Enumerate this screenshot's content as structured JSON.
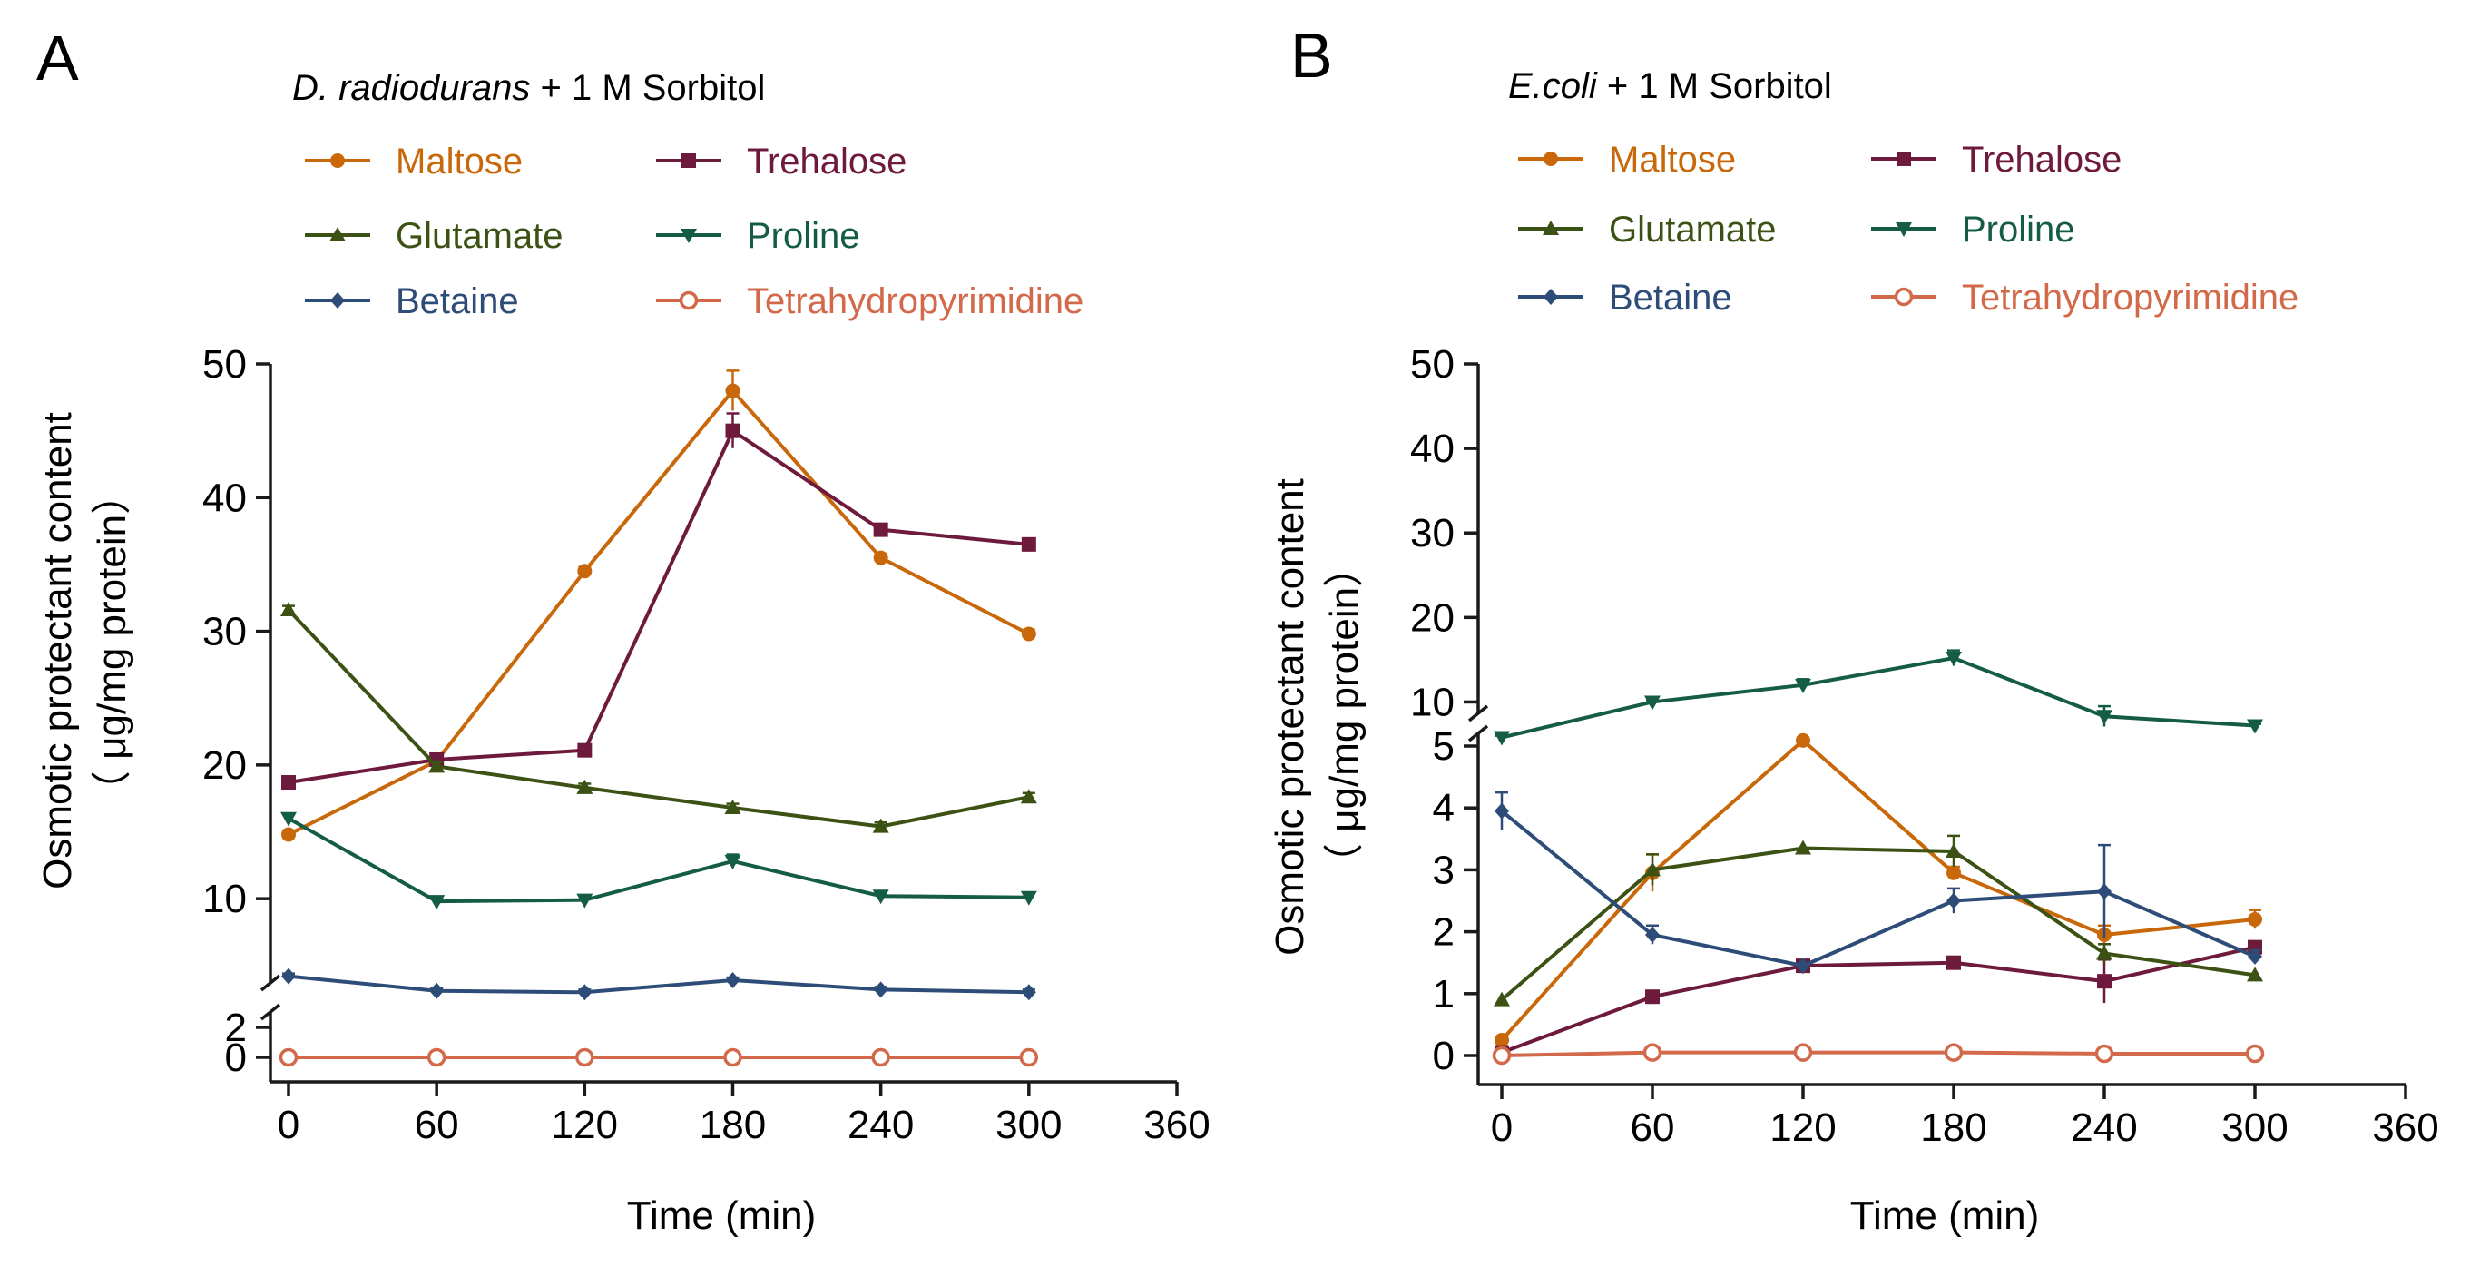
{
  "figure": {
    "panel_labels": [
      "A",
      "B"
    ]
  },
  "colors": {
    "Maltose": "#c8680a",
    "Trehalose": "#6e1a3c",
    "Glutamate": "#3c5214",
    "Proline": "#145c46",
    "Betaine": "#2e4c78",
    "Tetrahydropyrimidine": "#d2694a",
    "axis": "#1a1a1a"
  },
  "chart_data": [
    {
      "type": "line",
      "panel": "A",
      "title_italic": "D. radiodurans",
      "title_rest": " + 1 M Sorbitol",
      "xlabel": "Time (min)",
      "ylabel_line1": "Osmotic protectant content",
      "ylabel_line2": "（ μg/mg protein）",
      "x": [
        0,
        60,
        120,
        180,
        240,
        300
      ],
      "xlim": [
        0,
        360
      ],
      "xticks": [
        "0",
        "60",
        "120",
        "180",
        "240",
        "300",
        "360"
      ],
      "y_broken": true,
      "ylim_lower": [
        0,
        2
      ],
      "ylim_upper": [
        2,
        50
      ],
      "yticks_lower": [
        "0",
        "2"
      ],
      "yticks_upper": [
        "10",
        "20",
        "30",
        "40",
        "50"
      ],
      "legend_layout": "two-column, above plot",
      "series": [
        {
          "name": "Maltose",
          "marker": "circle",
          "values": [
            14.8,
            20.3,
            34.5,
            48.0,
            35.5,
            29.8
          ],
          "errors": [
            0.3,
            0.3,
            0.3,
            1.5,
            0.3,
            0.3
          ]
        },
        {
          "name": "Trehalose",
          "marker": "square",
          "values": [
            18.7,
            20.4,
            21.1,
            45.0,
            37.6,
            36.5
          ],
          "errors": [
            0.3,
            0.3,
            0.3,
            1.3,
            0.3,
            0.3
          ]
        },
        {
          "name": "Glutamate",
          "marker": "triangle-up",
          "values": [
            31.6,
            19.9,
            18.3,
            16.8,
            15.4,
            17.6
          ],
          "errors": [
            0.3,
            0.3,
            0.3,
            0.3,
            0.3,
            0.3
          ]
        },
        {
          "name": "Proline",
          "marker": "triangle-down",
          "values": [
            16.0,
            9.8,
            9.9,
            12.8,
            10.2,
            10.1
          ],
          "errors": [
            0.3,
            0.3,
            0.3,
            0.5,
            0.3,
            0.3
          ]
        },
        {
          "name": "Betaine",
          "marker": "diamond",
          "values": [
            4.2,
            3.1,
            3.0,
            3.9,
            3.2,
            3.0
          ],
          "errors": [
            0.2,
            0.2,
            0.2,
            0.2,
            0.2,
            0.2
          ]
        },
        {
          "name": "Tetrahydropyrimidine",
          "marker": "open-circle",
          "values": [
            0.0,
            0.0,
            0.0,
            0.0,
            0.0,
            0.0
          ],
          "errors": [
            0,
            0,
            0,
            0,
            0,
            0
          ]
        }
      ]
    },
    {
      "type": "line",
      "panel": "B",
      "title_italic": "E.coli",
      "title_rest": " + 1 M Sorbitol",
      "xlabel": "Time (min)",
      "ylabel_line1": "Osmotic protectant content",
      "ylabel_line2": "（ μg/mg protein）",
      "x": [
        0,
        60,
        120,
        180,
        240,
        300
      ],
      "xlim": [
        0,
        360
      ],
      "xticks": [
        "0",
        "60",
        "120",
        "180",
        "240",
        "300",
        "360"
      ],
      "y_broken": true,
      "ylim_lower": [
        0,
        5
      ],
      "ylim_upper": [
        5,
        50
      ],
      "yticks_lower": [
        "0",
        "1",
        "2",
        "3",
        "4",
        "5"
      ],
      "yticks_upper": [
        "10",
        "20",
        "30",
        "40",
        "50"
      ],
      "legend_layout": "two-column, above plot",
      "series": [
        {
          "name": "Maltose",
          "marker": "circle",
          "values": [
            0.25,
            2.95,
            5.45,
            2.95,
            1.95,
            2.2
          ],
          "errors": [
            0.05,
            0.3,
            0.05,
            0.1,
            0.15,
            0.15
          ]
        },
        {
          "name": "Trehalose",
          "marker": "square",
          "values": [
            0.05,
            0.95,
            1.45,
            1.5,
            1.2,
            1.75
          ],
          "errors": [
            0.05,
            0.05,
            0.05,
            0.05,
            0.35,
            0.05
          ]
        },
        {
          "name": "Glutamate",
          "marker": "triangle-up",
          "values": [
            0.9,
            3.0,
            3.35,
            3.3,
            1.65,
            1.3
          ],
          "errors": [
            0.05,
            0.25,
            0.05,
            0.25,
            0.15,
            0.05
          ]
        },
        {
          "name": "Proline",
          "marker": "triangle-down",
          "values": [
            5.8,
            10.0,
            12.0,
            15.2,
            8.3,
            7.2
          ],
          "errors": [
            0.2,
            0.2,
            0.7,
            0.9,
            1.2,
            0.2
          ]
        },
        {
          "name": "Betaine",
          "marker": "diamond",
          "values": [
            3.95,
            1.95,
            1.45,
            2.5,
            2.65,
            1.6
          ],
          "errors": [
            0.3,
            0.15,
            0.05,
            0.2,
            0.75,
            0.1
          ]
        },
        {
          "name": "Tetrahydropyrimidine",
          "marker": "open-circle",
          "values": [
            0.0,
            0.05,
            0.05,
            0.05,
            0.03,
            0.03
          ],
          "errors": [
            0,
            0,
            0,
            0,
            0,
            0
          ]
        }
      ]
    }
  ]
}
